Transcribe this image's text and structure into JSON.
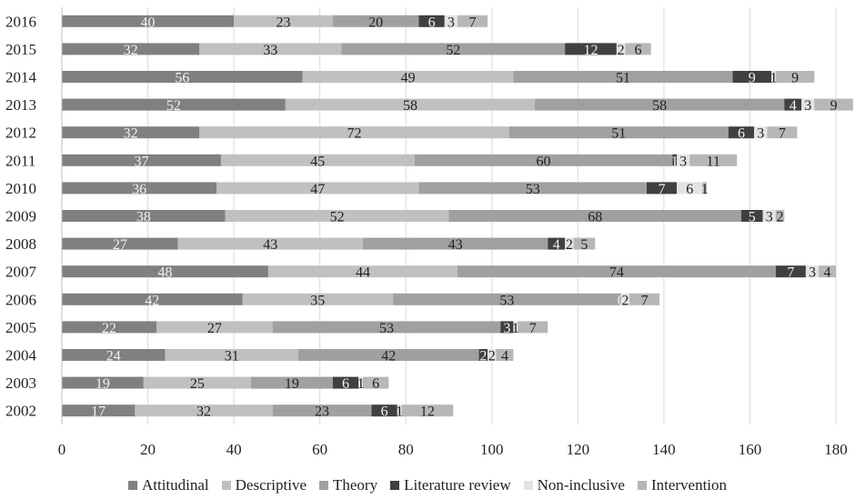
{
  "chart_data": {
    "type": "bar",
    "orientation": "horizontal",
    "stacked": true,
    "categories": [
      "2016",
      "2015",
      "2014",
      "2013",
      "2012",
      "2011",
      "2010",
      "2009",
      "2008",
      "2007",
      "2006",
      "2005",
      "2004",
      "2003",
      "2002"
    ],
    "series": [
      {
        "name": "Attitudinal",
        "color": "#808080",
        "values": [
          40,
          32,
          56,
          52,
          32,
          37,
          36,
          38,
          27,
          48,
          42,
          22,
          24,
          19,
          17
        ]
      },
      {
        "name": "Descriptive",
        "color": "#c0c0c0",
        "values": [
          23,
          33,
          49,
          58,
          72,
          45,
          47,
          52,
          43,
          44,
          35,
          27,
          31,
          25,
          32
        ]
      },
      {
        "name": "Theory",
        "color": "#a0a0a0",
        "values": [
          20,
          52,
          51,
          58,
          51,
          60,
          53,
          68,
          43,
          74,
          53,
          53,
          42,
          19,
          23
        ]
      },
      {
        "name": "Literature review",
        "color": "#404040",
        "values": [
          6,
          12,
          9,
          4,
          6,
          1,
          7,
          5,
          4,
          7,
          0,
          3,
          2,
          6,
          6
        ]
      },
      {
        "name": "Non-inclusive",
        "color": "#e3e3e3",
        "values": [
          3,
          2,
          1,
          3,
          3,
          3,
          6,
          3,
          2,
          3,
          2,
          1,
          2,
          1,
          1
        ]
      },
      {
        "name": "Intervention",
        "color": "#b7b7b7",
        "values": [
          7,
          6,
          9,
          9,
          7,
          11,
          1,
          2,
          5,
          4,
          7,
          7,
          4,
          6,
          12
        ]
      }
    ],
    "xlim": [
      0,
      180
    ],
    "xticks": [
      0,
      20,
      40,
      60,
      80,
      100,
      120,
      140,
      160,
      180
    ],
    "grid": "vertical",
    "legend_position": "bottom"
  }
}
